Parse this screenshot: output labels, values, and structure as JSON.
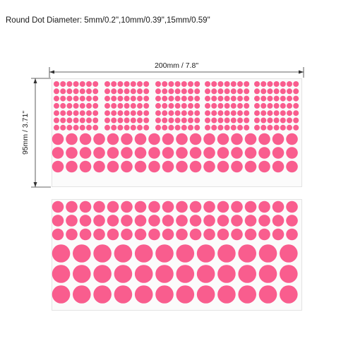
{
  "caption": "Round Dot Diameter: 5mm/0.2\",10mm/0.39\",15mm/0.59\"",
  "dimensions": {
    "width_label": "200mm / 7.8\"",
    "height_label": "95mm / 3.71\""
  },
  "colors": {
    "dot": "#f95d8e",
    "sheet": "#fbfbfb",
    "line": "#333333"
  }
}
